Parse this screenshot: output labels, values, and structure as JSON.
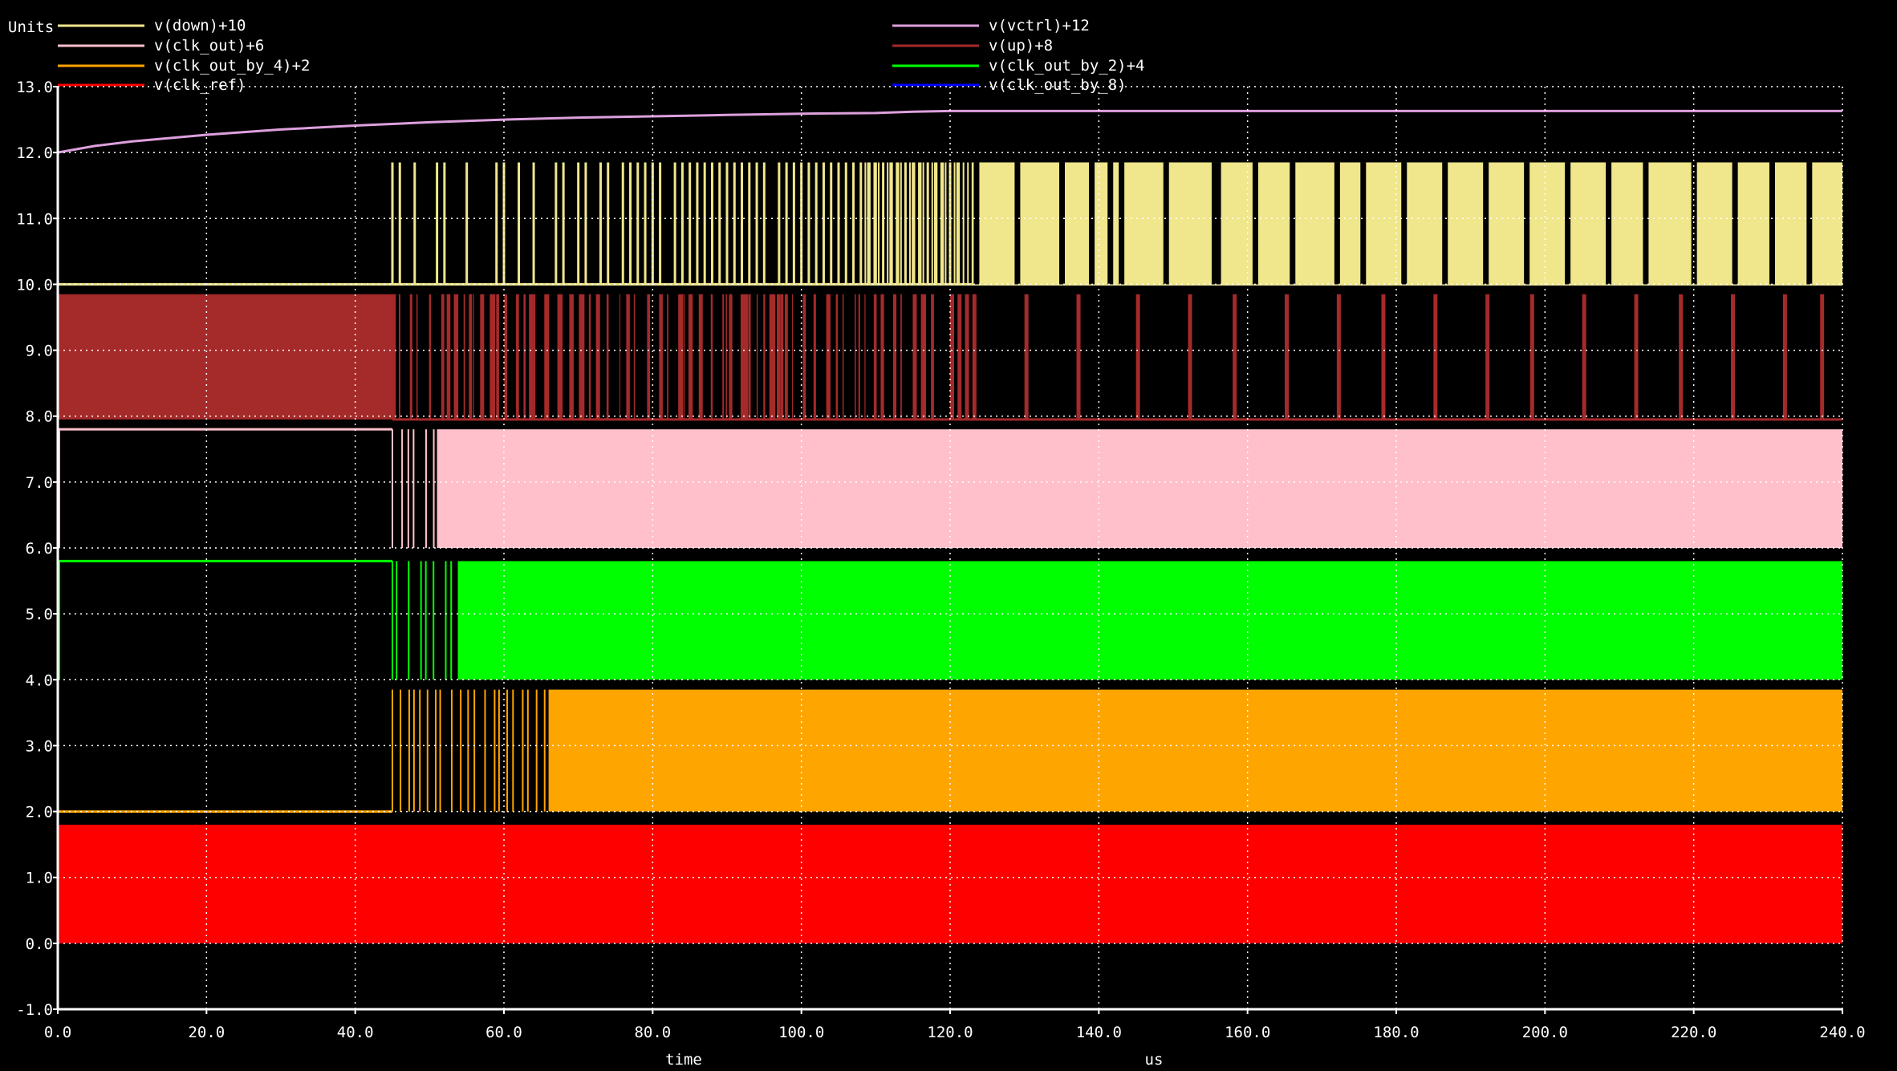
{
  "colors": {
    "background": "#000000",
    "axis": "#ffffff",
    "grid": "#ffffff",
    "text": "#ffffff"
  },
  "chart_data": {
    "type": "line",
    "units_label": "Units",
    "xlabel": "time",
    "xunit": "us",
    "xlim": [
      0,
      240
    ],
    "ylim": [
      -1,
      13
    ],
    "x_ticks": [
      "0.0",
      "20.0",
      "40.0",
      "60.0",
      "80.0",
      "100.0",
      "120.0",
      "140.0",
      "160.0",
      "180.0",
      "200.0",
      "220.0",
      "240.0"
    ],
    "y_ticks": [
      "13.0",
      "12.0",
      "11.0",
      "10.0",
      "9.0",
      "8.0",
      "7.0",
      "6.0",
      "5.0",
      "4.0",
      "3.0",
      "2.0",
      "1.0",
      "0.0",
      "-1.0"
    ],
    "grid": true,
    "legend_position": "top",
    "series": [
      {
        "name": "v(down)+10",
        "color": "#f0e68c",
        "kind": "pulse",
        "low": 10.0,
        "high": 11.85,
        "start": 45,
        "fill_from": 123,
        "transitions": [
          45,
          46,
          48,
          51,
          52,
          55,
          59,
          60,
          62,
          64,
          67,
          68,
          70,
          71,
          73,
          74,
          76,
          77,
          78,
          79,
          80,
          81,
          83,
          84,
          85,
          86,
          87,
          88,
          89,
          90,
          91,
          92,
          93,
          94,
          95,
          97,
          98,
          99,
          100,
          101,
          102,
          103,
          104,
          105,
          106,
          107,
          108,
          109,
          110,
          111,
          112,
          113,
          114,
          115,
          116,
          117,
          118,
          119,
          120,
          121
        ],
        "gaps": [
          123.5,
          129,
          135,
          139,
          141.5,
          143,
          149,
          155.5,
          156,
          161,
          166,
          172,
          175.5,
          181,
          186.5,
          192,
          197.5,
          203,
          208.5,
          213.5,
          220,
          225.5,
          230.5,
          235.5
        ]
      },
      {
        "name": "v(vctrl)+12",
        "color": "#dda0dd",
        "kind": "curve",
        "x": [
          0,
          5,
          10,
          20,
          30,
          40,
          50,
          60,
          70,
          80,
          90,
          100,
          110,
          115,
          120,
          240
        ],
        "y": [
          12.0,
          12.1,
          12.17,
          12.27,
          12.35,
          12.41,
          12.46,
          12.5,
          12.53,
          12.55,
          12.57,
          12.59,
          12.6,
          12.62,
          12.63,
          12.63
        ]
      },
      {
        "name": "v(up)+8",
        "color": "#a52a2a",
        "kind": "pulse",
        "low": 7.95,
        "high": 9.85,
        "start": 0,
        "fill_until": 45,
        "busy_range": [
          45,
          118
        ],
        "spikes": [
          120,
          121,
          122,
          123,
          130,
          137,
          145,
          152,
          158,
          165,
          172,
          178,
          185,
          192,
          198,
          205,
          212,
          218,
          225,
          232,
          237
        ]
      },
      {
        "name": "v(clk_out)+6",
        "color": "#ffc0cb",
        "kind": "square",
        "low": 6.0,
        "high": 7.8,
        "pre_level": 7.8,
        "start": 45,
        "solid_from": 51
      },
      {
        "name": "v(clk_out_by_2)+4",
        "color": "#00ff00",
        "kind": "square",
        "low": 4.0,
        "high": 5.8,
        "pre_level": 5.8,
        "start": 45,
        "solid_from": 54
      },
      {
        "name": "v(clk_out_by_4)+2",
        "color": "#ffa500",
        "kind": "square",
        "low": 2.0,
        "high": 3.85,
        "pre_level": 2.0,
        "start": 45,
        "solid_from": 66
      },
      {
        "name": "v(clk_out_by_8)",
        "color": "#0000ff",
        "kind": "square",
        "low": 0.0,
        "high": 1.8,
        "start": 0,
        "solid_from": 0
      },
      {
        "name": "v(clk_ref)",
        "color": "#ff0000",
        "kind": "square",
        "low": 0.0,
        "high": 1.8,
        "start": 0,
        "solid_from": 0
      }
    ]
  }
}
